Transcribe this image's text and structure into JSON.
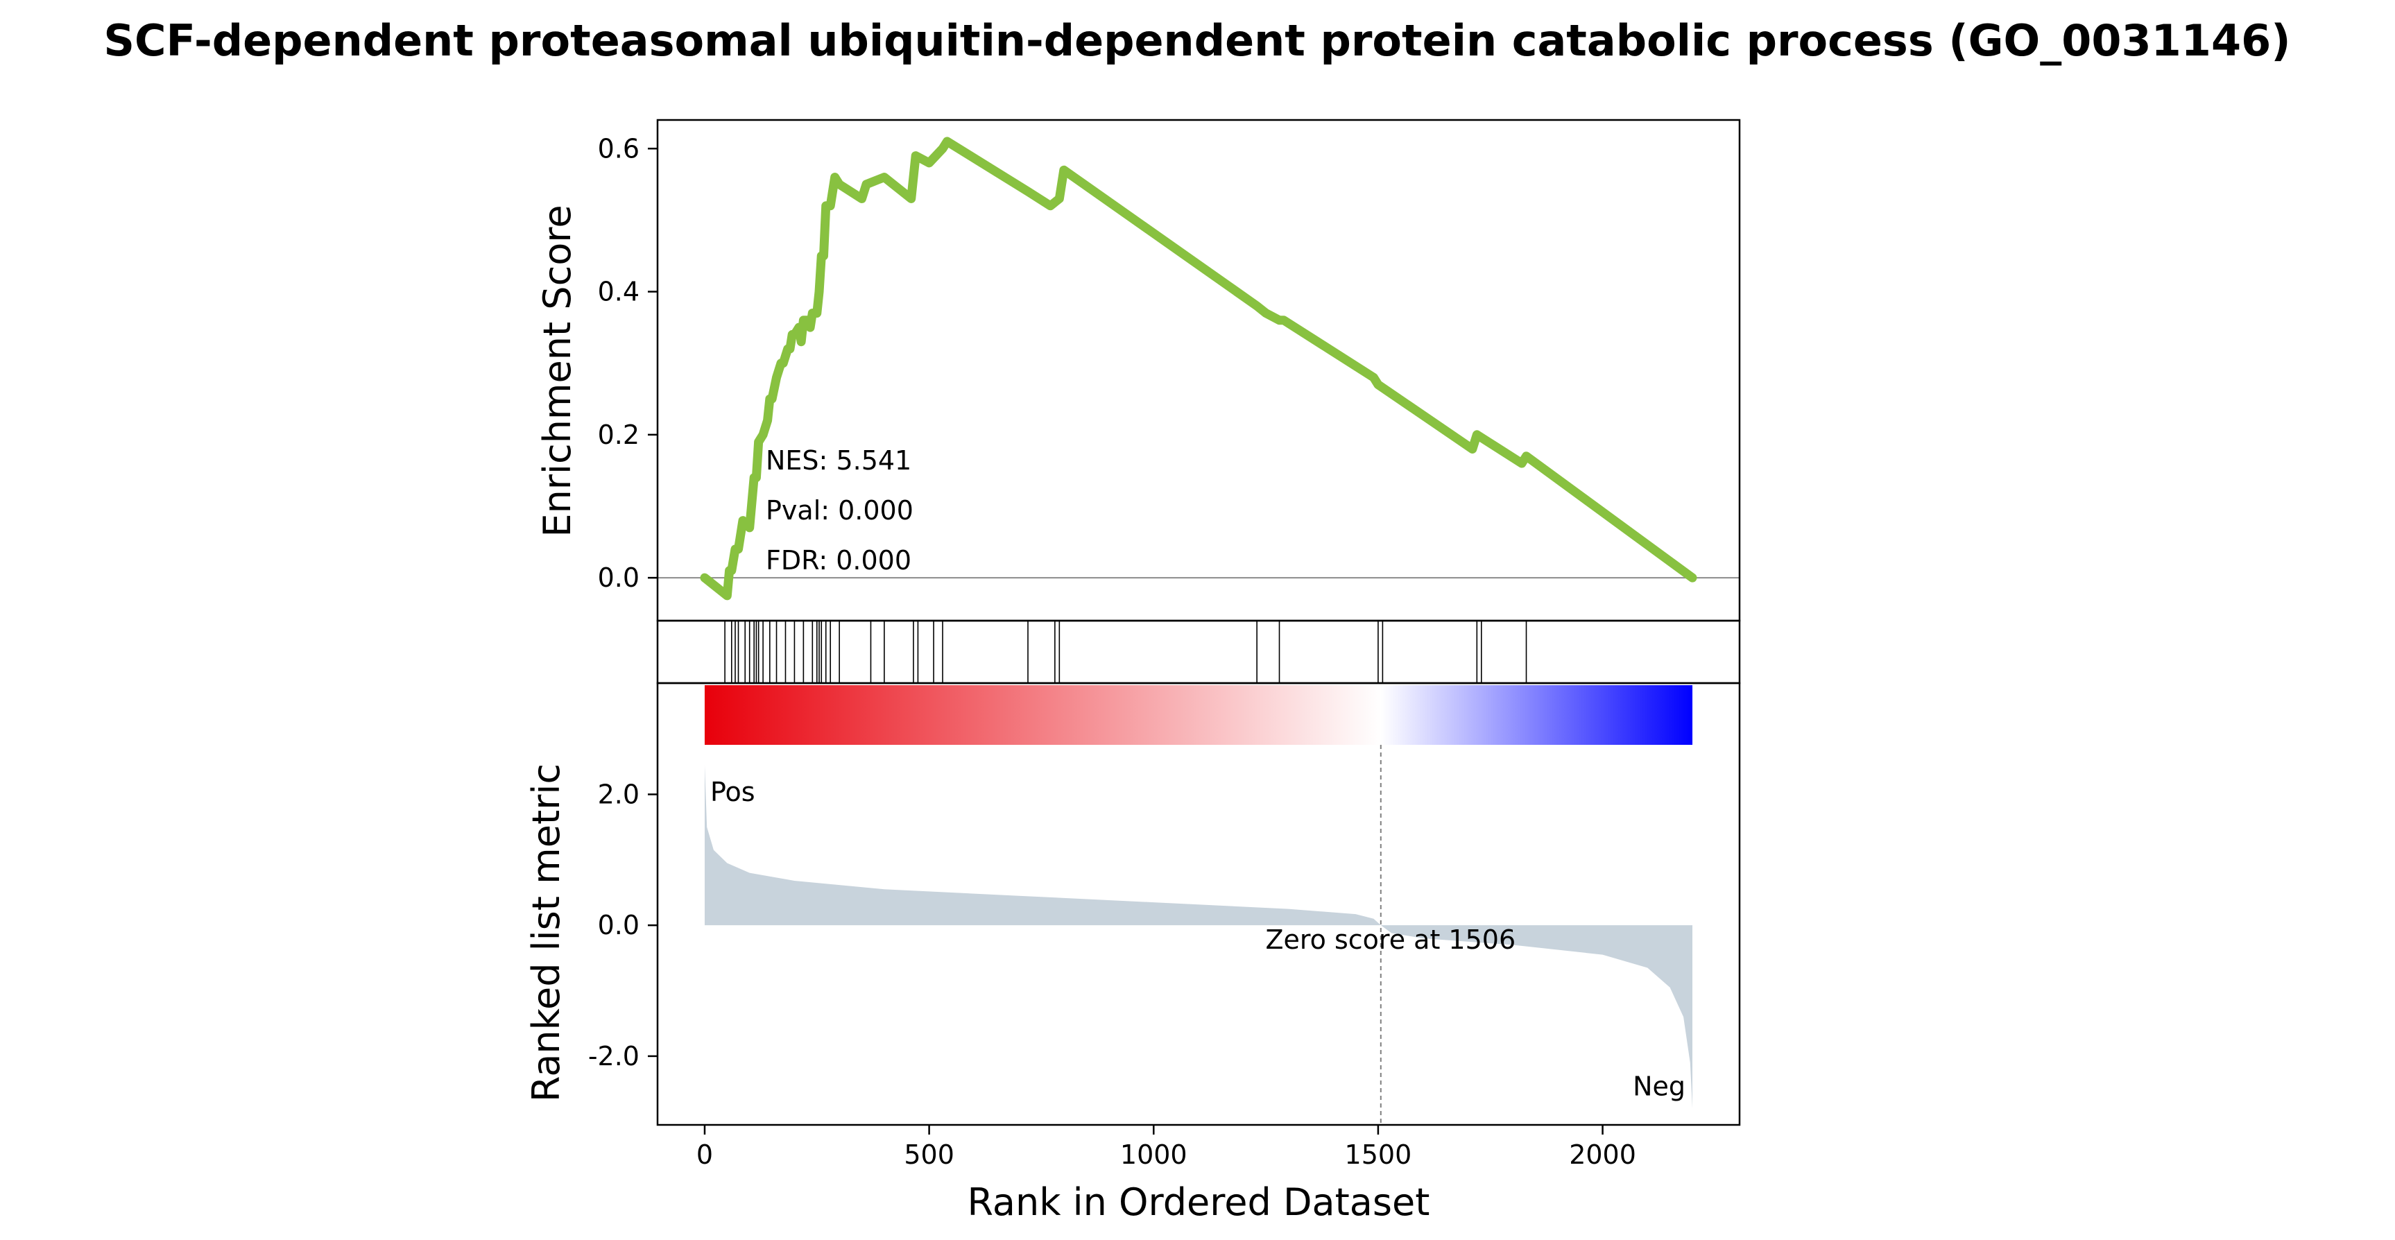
{
  "chart_data": {
    "type": "line",
    "title": "SCF-dependent proteasomal ubiquitin-dependent protein catabolic process (GO_0031146)",
    "xlabel": "Rank in Ordered Dataset",
    "es_panel": {
      "ylabel": "Enrichment Score",
      "ylim": [
        -0.06,
        0.64
      ],
      "yticks": [
        0.0,
        0.2,
        0.4,
        0.6
      ],
      "ytick_labels": [
        "0.0",
        "0.2",
        "0.4",
        "0.6"
      ],
      "line_color": "#88c140",
      "zero_line_color": "#8c8c8c",
      "stats": [
        "NES: 5.541",
        "Pval: 0.000",
        "FDR: 0.000"
      ],
      "es_curve": {
        "x": [
          0,
          50,
          55,
          60,
          68,
          75,
          85,
          100,
          110,
          115,
          120,
          130,
          140,
          145,
          150,
          160,
          170,
          175,
          185,
          190,
          195,
          200,
          210,
          215,
          220,
          230,
          235,
          240,
          250,
          255,
          260,
          265,
          270,
          280,
          290,
          300,
          350,
          360,
          400,
          460,
          470,
          500,
          530,
          540,
          720,
          770,
          790,
          800,
          1230,
          1250,
          1280,
          1290,
          1490,
          1500,
          1710,
          1720,
          1820,
          1830,
          2200
        ],
        "y": [
          0.0,
          -0.025,
          0.01,
          0.01,
          0.04,
          0.04,
          0.08,
          0.07,
          0.14,
          0.14,
          0.19,
          0.2,
          0.22,
          0.25,
          0.25,
          0.28,
          0.3,
          0.3,
          0.32,
          0.32,
          0.34,
          0.34,
          0.35,
          0.33,
          0.36,
          0.36,
          0.35,
          0.37,
          0.37,
          0.4,
          0.45,
          0.45,
          0.52,
          0.52,
          0.56,
          0.55,
          0.53,
          0.55,
          0.56,
          0.53,
          0.59,
          0.58,
          0.6,
          0.61,
          0.54,
          0.52,
          0.53,
          0.57,
          0.38,
          0.37,
          0.36,
          0.36,
          0.28,
          0.27,
          0.18,
          0.2,
          0.16,
          0.17,
          0.0
        ]
      }
    },
    "hits_panel": {
      "hit_positions": [
        45,
        60,
        68,
        75,
        90,
        100,
        110,
        115,
        120,
        130,
        145,
        160,
        180,
        200,
        220,
        240,
        250,
        255,
        260,
        270,
        280,
        300,
        370,
        400,
        465,
        475,
        510,
        530,
        720,
        780,
        790,
        1230,
        1280,
        1500,
        1510,
        1720,
        1730,
        1830
      ]
    },
    "rank_panel": {
      "ylabel": "Ranked list metric",
      "ylim": [
        -3.05,
        3.7
      ],
      "yticks": [
        2.0,
        0.0,
        -2.0
      ],
      "ytick_labels": [
        "2.0",
        "0.0",
        "-2.0"
      ],
      "fill_color": "#c8d3dc",
      "zero_cross_rank": 1506,
      "zero_cross_label": "Zero score at 1506",
      "pos_label": "Pos",
      "neg_label": "Neg",
      "pos_color": "#e8000b",
      "neg_color": "#0000ff",
      "gradient_colors": [
        "#e8000b",
        "#ffffff",
        "#0000ff"
      ],
      "metric_curve": {
        "rank": [
          0,
          5,
          20,
          50,
          100,
          200,
          400,
          700,
          1000,
          1300,
          1450,
          1490,
          1506,
          1530,
          1600,
          1800,
          2000,
          2100,
          2150,
          2180,
          2195,
          2200
        ],
        "value": [
          2.45,
          1.5,
          1.15,
          0.95,
          0.8,
          0.68,
          0.55,
          0.45,
          0.35,
          0.25,
          0.17,
          0.1,
          0.0,
          -0.12,
          -0.2,
          -0.3,
          -0.45,
          -0.65,
          -0.95,
          -1.4,
          -2.1,
          -2.8
        ]
      }
    },
    "xlim": [
      -105,
      2305
    ],
    "xticks": [
      0,
      500,
      1000,
      1500,
      2000
    ],
    "xtick_labels": [
      "0",
      "500",
      "1000",
      "1500",
      "2000"
    ]
  }
}
